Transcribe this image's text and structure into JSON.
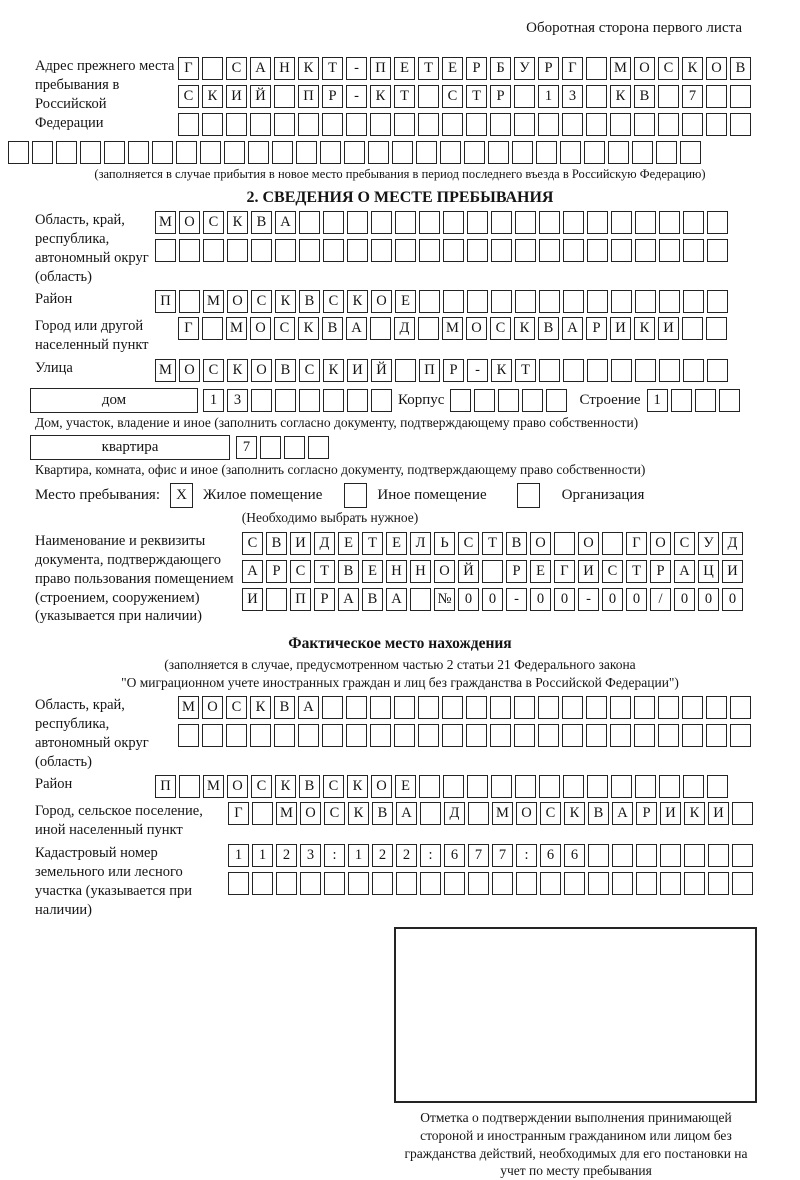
{
  "page": {
    "header_note": "Оборотная сторона первого листа"
  },
  "prev_address": {
    "label": "Адрес прежнего места пребывания в Российской Федерации",
    "rows": [
      "Г САНКТ-ПЕТЕРБУРГ МОСКОВ",
      "СКИЙ ПР-КТ СТР 13 КВ 7  ",
      "                        "
    ],
    "row_full": "                             ",
    "note": "(заполняется в случае прибытия в новое место пребывания в период последнего въезда в Российскую Федерацию)"
  },
  "section2": {
    "title": "2. СВЕДЕНИЯ О МЕСТЕ ПРЕБЫВАНИЯ",
    "oblast": {
      "label": "Область, край, республика, автономный округ (область)",
      "rows": [
        "МОСКВА                  ",
        "                        "
      ]
    },
    "raion": {
      "label": "Район",
      "row": "П МОСКВСКОЕ             "
    },
    "gorod": {
      "label": "Город или другой населенный пункт",
      "row": "Г МОСКВА Д МОСКВАРИКИ  "
    },
    "ulitsa": {
      "label": "Улица",
      "row": "МОСКОВСКИЙ ПР-КТ        "
    },
    "dom": {
      "label": "дом",
      "boxes": "13      "
    },
    "korpus": {
      "label": "Корпус",
      "boxes": "     "
    },
    "stroenie": {
      "label": "Строение",
      "boxes": "1   "
    },
    "dom_note": "Дом, участок, владение и иное (заполнить согласно документу, подтверждающему право собственности)",
    "kvartira": {
      "label": "квартира",
      "boxes": "7   "
    },
    "kvartira_note": "Квартира, комната, офис и иное (заполнить согласно документу, подтверждающему право собственности)",
    "mesto": {
      "label": "Место пребывания:",
      "opt1_mark": "X",
      "opt1": "Жилое помещение",
      "opt2_mark": "",
      "opt2": "Иное помещение",
      "opt3_mark": "",
      "opt3": "Организация",
      "note": "(Необходимо выбрать нужное)"
    },
    "doc": {
      "label": "Наименование и реквизиты документа, подтверждающего право пользования помещением (строением, сооружением) (указывается при наличии)",
      "rows": [
        "СВИДЕТЕЛЬСТВО О ГОСУД",
        "АРСТВЕННОЙ РЕГИСТРАЦИ",
        "И ПРАВА №00-00-00/000"
      ]
    }
  },
  "fact": {
    "title": "Фактическое место нахождения",
    "note1": "(заполняется в случае, предусмотренном частью 2 статьи 21 Федерального закона",
    "note2": "\"О миграционном учете иностранных граждан и лиц без гражданства в Российской Федерации\")",
    "oblast": {
      "label": "Область, край, республика, автономный округ (область)",
      "rows": [
        "МОСКВА                  ",
        "                        "
      ]
    },
    "raion": {
      "label": "Район",
      "row": "П МОСКВСКОЕ             "
    },
    "gorod": {
      "label": "Город, сельское поселение, иной населенный пункт",
      "row": "Г МОСКВА Д МОСКВАРИКИ "
    },
    "kadastr": {
      "label": "Кадастровый номер земельного или лесного участка (указывается при наличии)",
      "rows": [
        "1123:122:677:66       ",
        "                      "
      ]
    }
  },
  "stamp": {
    "note": "Отметка о подтверждении выполнения принимающей стороной и иностранным гражданином или лицом без гражданства действий, необходимых для его постановки на учет по месту пребывания"
  }
}
